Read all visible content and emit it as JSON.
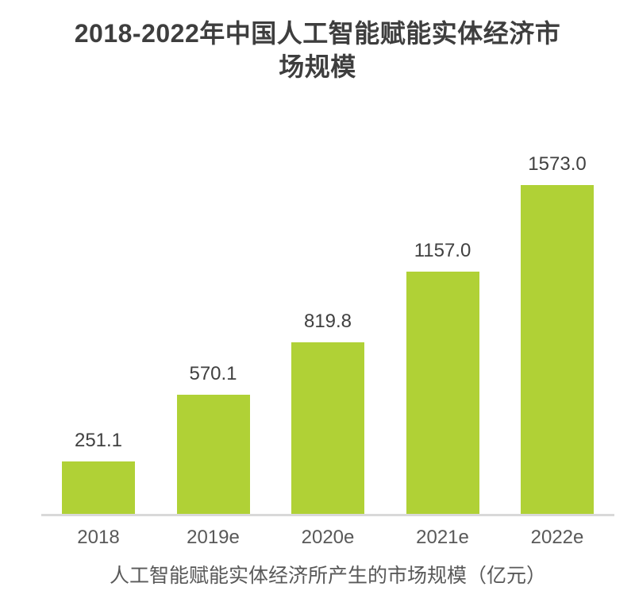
{
  "title_lines": [
    "2018-2022年中国人工智能赋能实体经济市",
    "场规模"
  ],
  "chart_data": {
    "type": "bar",
    "title": "2018-2022年中国人工智能赋能实体经济市场规模",
    "categories": [
      "2018",
      "2019e",
      "2020e",
      "2021e",
      "2022e"
    ],
    "values": [
      251.1,
      570.1,
      819.8,
      1157.0,
      1573.0
    ],
    "value_labels": [
      "251.1",
      "570.1",
      "819.8",
      "1157.0",
      "1573.0"
    ],
    "series_label": "人工智能赋能实体经济所产生的市场规模（亿元）",
    "unit": "亿元",
    "xlabel": "",
    "ylim": [
      0,
      1650
    ],
    "grid": false,
    "legend_position": "bottom",
    "bar_color": "#B0D136",
    "axis_line_color": "#D9D9D9",
    "title_color": "#3E3E3E",
    "value_label_color": "#404040",
    "axis_label_color": "#595959"
  }
}
